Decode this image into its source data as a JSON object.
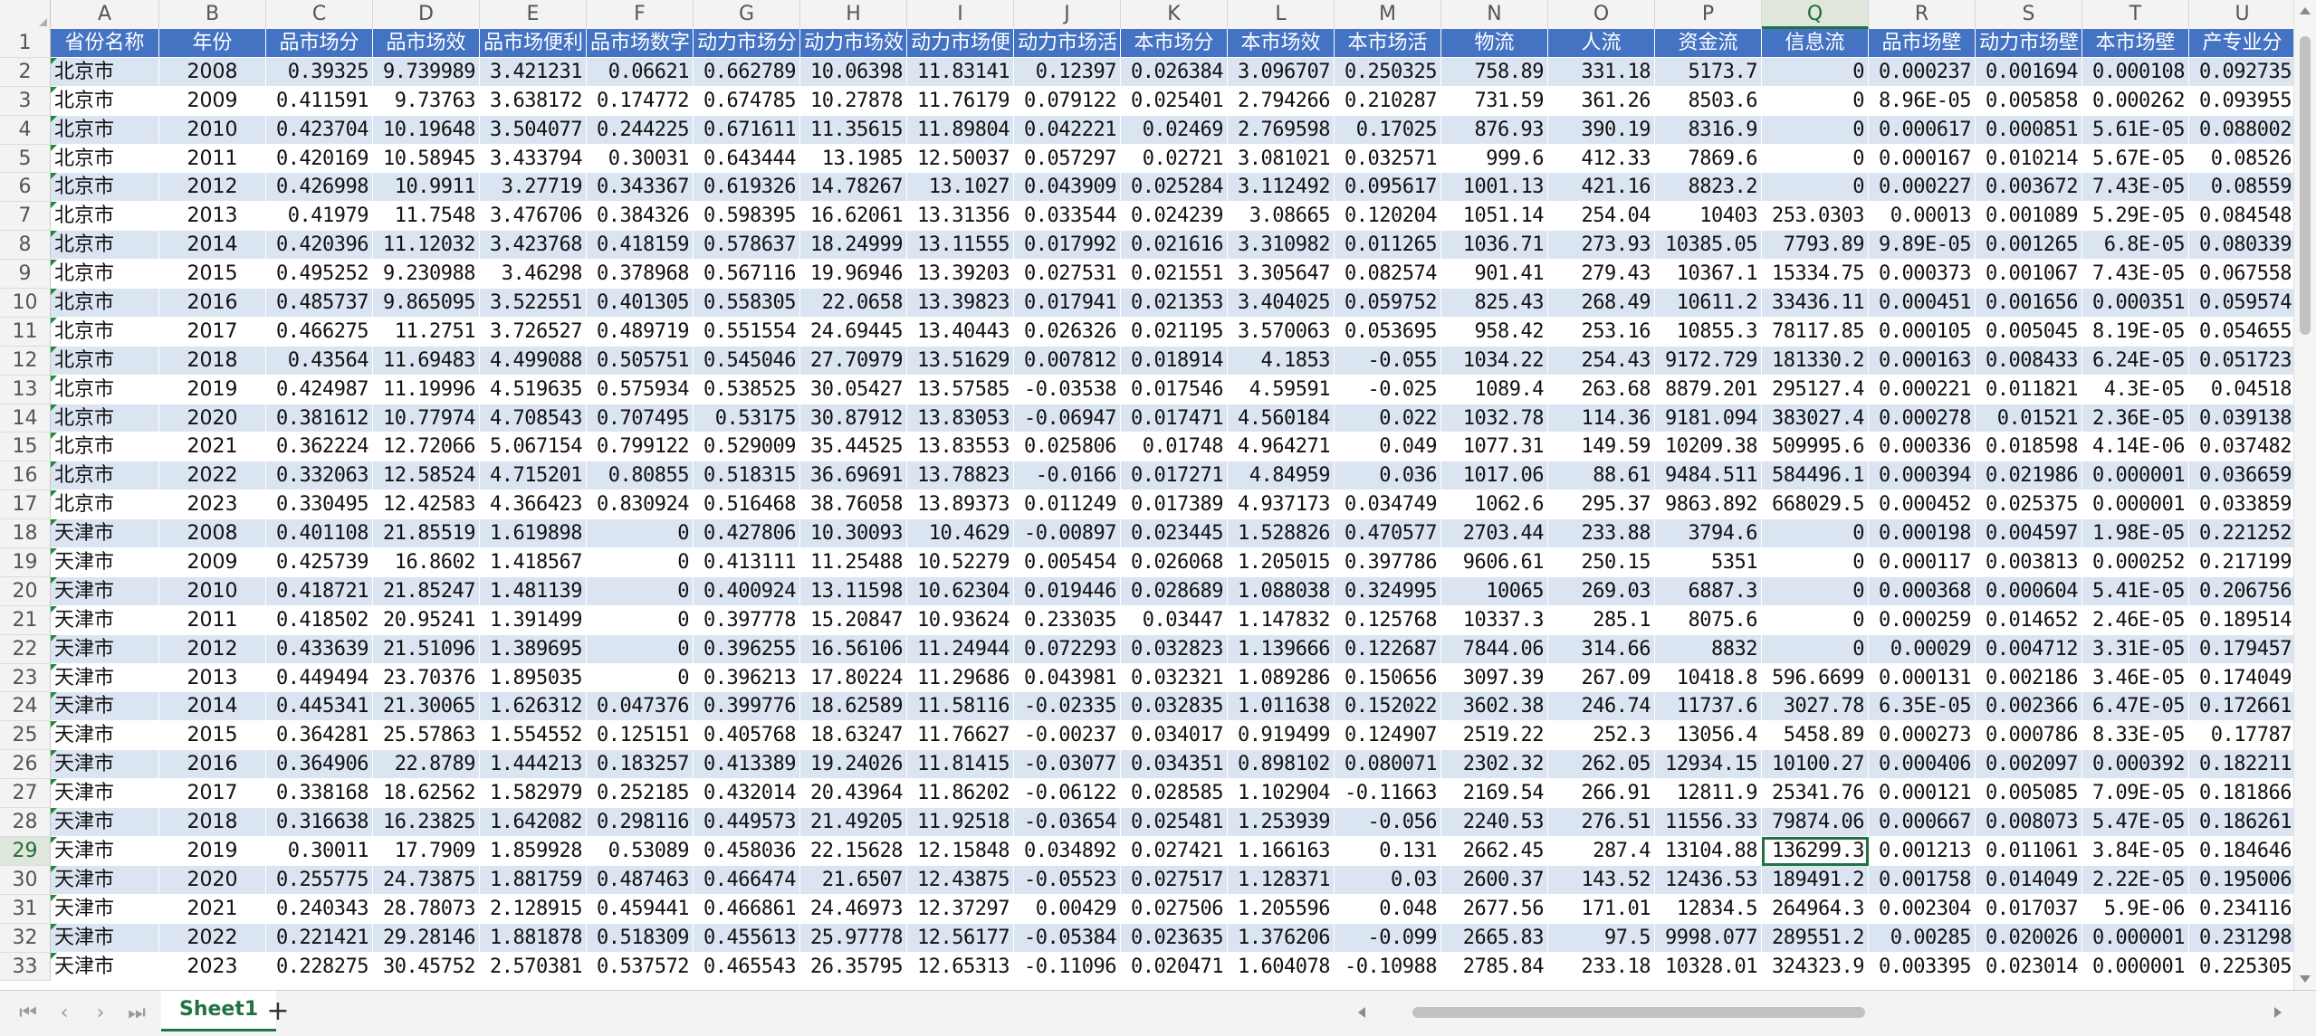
{
  "columns": [
    "A",
    "B",
    "C",
    "D",
    "E",
    "F",
    "G",
    "H",
    "I",
    "J",
    "K",
    "L",
    "M",
    "N",
    "O",
    "P",
    "Q",
    "R",
    "S",
    "T",
    "U"
  ],
  "selected_column": "Q",
  "selected_row": "29",
  "header_row": {
    "row_number": "1",
    "cells": [
      "省份名称",
      "年份",
      "品市场分",
      "品市场效",
      "品市场便利",
      "品市场数字",
      "动力市场分",
      "动力市场效",
      "动力市场便",
      "动力市场活",
      "本市场分",
      "本市场效",
      "本市场活",
      "物流",
      "人流",
      "资金流",
      "信息流",
      "品市场壁",
      "动力市场壁",
      "本市场壁",
      "产专业分"
    ]
  },
  "rows": [
    {
      "n": "2",
      "cells": [
        "北京市",
        "2008",
        "0.39325",
        "9.739989",
        "3.421231",
        "0.06621",
        "0.662789",
        "10.06398",
        "11.83141",
        "0.12397",
        "0.026384",
        "3.096707",
        "0.250325",
        "758.89",
        "331.18",
        "5173.7",
        "0",
        "0.000237",
        "0.001694",
        "0.000108",
        "0.092735"
      ]
    },
    {
      "n": "3",
      "cells": [
        "北京市",
        "2009",
        "0.411591",
        "9.73763",
        "3.638172",
        "0.174772",
        "0.674785",
        "10.27878",
        "11.76179",
        "0.079122",
        "0.025401",
        "2.794266",
        "0.210287",
        "731.59",
        "361.26",
        "8503.6",
        "0",
        "8.96E-05",
        "0.005858",
        "0.000262",
        "0.093955"
      ]
    },
    {
      "n": "4",
      "cells": [
        "北京市",
        "2010",
        "0.423704",
        "10.19648",
        "3.504077",
        "0.244225",
        "0.671611",
        "11.35615",
        "11.89804",
        "0.042221",
        "0.02469",
        "2.769598",
        "0.17025",
        "876.93",
        "390.19",
        "8316.9",
        "0",
        "0.000617",
        "0.000851",
        "5.61E-05",
        "0.088002"
      ]
    },
    {
      "n": "5",
      "cells": [
        "北京市",
        "2011",
        "0.420169",
        "10.58945",
        "3.433794",
        "0.30031",
        "0.643444",
        "13.1985",
        "12.50037",
        "0.057297",
        "0.02721",
        "3.081021",
        "0.032571",
        "999.6",
        "412.33",
        "7869.6",
        "0",
        "0.000167",
        "0.010214",
        "5.67E-05",
        "0.08526"
      ]
    },
    {
      "n": "6",
      "cells": [
        "北京市",
        "2012",
        "0.426998",
        "10.9911",
        "3.27719",
        "0.343367",
        "0.619326",
        "14.78267",
        "13.1027",
        "0.043909",
        "0.025284",
        "3.112492",
        "0.095617",
        "1001.13",
        "421.16",
        "8823.2",
        "0",
        "0.000227",
        "0.003672",
        "7.43E-05",
        "0.08559"
      ]
    },
    {
      "n": "7",
      "cells": [
        "北京市",
        "2013",
        "0.41979",
        "11.7548",
        "3.476706",
        "0.384326",
        "0.598395",
        "16.62061",
        "13.31356",
        "0.033544",
        "0.024239",
        "3.08665",
        "0.120204",
        "1051.14",
        "254.04",
        "10403",
        "253.0303",
        "0.00013",
        "0.001089",
        "5.29E-05",
        "0.084548"
      ]
    },
    {
      "n": "8",
      "cells": [
        "北京市",
        "2014",
        "0.420396",
        "11.12032",
        "3.423768",
        "0.418159",
        "0.578637",
        "18.24999",
        "13.11555",
        "0.017992",
        "0.021616",
        "3.310982",
        "0.011265",
        "1036.71",
        "273.93",
        "10385.05",
        "7793.89",
        "9.89E-05",
        "0.001265",
        "6.8E-05",
        "0.080339"
      ]
    },
    {
      "n": "9",
      "cells": [
        "北京市",
        "2015",
        "0.495252",
        "9.230988",
        "3.46298",
        "0.378968",
        "0.567116",
        "19.96946",
        "13.39203",
        "0.027531",
        "0.021551",
        "3.305647",
        "0.082574",
        "901.41",
        "279.43",
        "10367.1",
        "15334.75",
        "0.000373",
        "0.001067",
        "7.43E-05",
        "0.067558"
      ]
    },
    {
      "n": "10",
      "cells": [
        "北京市",
        "2016",
        "0.485737",
        "9.865095",
        "3.522551",
        "0.401305",
        "0.558305",
        "22.0658",
        "13.39823",
        "0.017941",
        "0.021353",
        "3.404025",
        "0.059752",
        "825.43",
        "268.49",
        "10611.2",
        "33436.11",
        "0.000451",
        "0.001656",
        "0.000351",
        "0.059574"
      ]
    },
    {
      "n": "11",
      "cells": [
        "北京市",
        "2017",
        "0.466275",
        "11.2751",
        "3.726527",
        "0.489719",
        "0.551554",
        "24.69445",
        "13.40443",
        "0.026326",
        "0.021195",
        "3.570063",
        "0.053695",
        "958.42",
        "253.16",
        "10855.3",
        "78117.85",
        "0.000105",
        "0.005045",
        "8.19E-05",
        "0.054655"
      ]
    },
    {
      "n": "12",
      "cells": [
        "北京市",
        "2018",
        "0.43564",
        "11.69483",
        "4.499088",
        "0.505751",
        "0.545046",
        "27.70979",
        "13.51629",
        "0.007812",
        "0.018914",
        "4.1853",
        "-0.055",
        "1034.22",
        "254.43",
        "9172.729",
        "181330.2",
        "0.000163",
        "0.008433",
        "6.24E-05",
        "0.051723"
      ]
    },
    {
      "n": "13",
      "cells": [
        "北京市",
        "2019",
        "0.424987",
        "11.19996",
        "4.519635",
        "0.575934",
        "0.538525",
        "30.05427",
        "13.57585",
        "-0.03538",
        "0.017546",
        "4.59591",
        "-0.025",
        "1089.4",
        "263.68",
        "8879.201",
        "295127.4",
        "0.000221",
        "0.011821",
        "4.3E-05",
        "0.04518"
      ]
    },
    {
      "n": "14",
      "cells": [
        "北京市",
        "2020",
        "0.381612",
        "10.77974",
        "4.708543",
        "0.707495",
        "0.53175",
        "30.87912",
        "13.83053",
        "-0.06947",
        "0.017471",
        "4.560184",
        "0.022",
        "1032.78",
        "114.36",
        "9181.094",
        "383027.4",
        "0.000278",
        "0.01521",
        "2.36E-05",
        "0.039138"
      ]
    },
    {
      "n": "15",
      "cells": [
        "北京市",
        "2021",
        "0.362224",
        "12.72066",
        "5.067154",
        "0.799122",
        "0.529009",
        "35.44525",
        "13.83553",
        "0.025806",
        "0.01748",
        "4.964271",
        "0.049",
        "1077.31",
        "149.59",
        "10209.38",
        "509995.6",
        "0.000336",
        "0.018598",
        "4.14E-06",
        "0.037482"
      ]
    },
    {
      "n": "16",
      "cells": [
        "北京市",
        "2022",
        "0.332063",
        "12.58524",
        "4.715201",
        "0.80855",
        "0.518315",
        "36.69691",
        "13.78823",
        "-0.0166",
        "0.017271",
        "4.84959",
        "0.036",
        "1017.06",
        "88.61",
        "9484.511",
        "584496.1",
        "0.000394",
        "0.021986",
        "0.000001",
        "0.036659"
      ]
    },
    {
      "n": "17",
      "cells": [
        "北京市",
        "2023",
        "0.330495",
        "12.42583",
        "4.366423",
        "0.830924",
        "0.516468",
        "38.76058",
        "13.89373",
        "0.011249",
        "0.017389",
        "4.937173",
        "0.034749",
        "1062.6",
        "295.37",
        "9863.892",
        "668029.5",
        "0.000452",
        "0.025375",
        "0.000001",
        "0.033859"
      ]
    },
    {
      "n": "18",
      "cells": [
        "天津市",
        "2008",
        "0.401108",
        "21.85519",
        "1.619898",
        "0",
        "0.427806",
        "10.30093",
        "10.4629",
        "-0.00897",
        "0.023445",
        "1.528826",
        "0.470577",
        "2703.44",
        "233.88",
        "3794.6",
        "0",
        "0.000198",
        "0.004597",
        "1.98E-05",
        "0.221252"
      ]
    },
    {
      "n": "19",
      "cells": [
        "天津市",
        "2009",
        "0.425739",
        "16.8602",
        "1.418567",
        "0",
        "0.413111",
        "11.25488",
        "10.52279",
        "0.005454",
        "0.026068",
        "1.205015",
        "0.397786",
        "9606.61",
        "250.15",
        "5351",
        "0",
        "0.000117",
        "0.003813",
        "0.000252",
        "0.217199"
      ]
    },
    {
      "n": "20",
      "cells": [
        "天津市",
        "2010",
        "0.418721",
        "21.85247",
        "1.481139",
        "0",
        "0.400924",
        "13.11598",
        "10.62304",
        "0.019446",
        "0.028689",
        "1.088038",
        "0.324995",
        "10065",
        "269.03",
        "6887.3",
        "0",
        "0.000368",
        "0.000604",
        "5.41E-05",
        "0.206756"
      ]
    },
    {
      "n": "21",
      "cells": [
        "天津市",
        "2011",
        "0.418502",
        "20.95241",
        "1.391499",
        "0",
        "0.397778",
        "15.20847",
        "10.93624",
        "0.233035",
        "0.03447",
        "1.147832",
        "0.125768",
        "10337.3",
        "285.1",
        "8075.6",
        "0",
        "0.000259",
        "0.014652",
        "2.46E-05",
        "0.189514"
      ]
    },
    {
      "n": "22",
      "cells": [
        "天津市",
        "2012",
        "0.433639",
        "21.51096",
        "1.389695",
        "0",
        "0.396255",
        "16.56106",
        "11.24944",
        "0.072293",
        "0.032823",
        "1.139666",
        "0.122687",
        "7844.06",
        "314.66",
        "8832",
        "0",
        "0.00029",
        "0.004712",
        "3.31E-05",
        "0.179457"
      ]
    },
    {
      "n": "23",
      "cells": [
        "天津市",
        "2013",
        "0.449494",
        "23.70376",
        "1.895035",
        "0",
        "0.396213",
        "17.80224",
        "11.29686",
        "0.043981",
        "0.032321",
        "1.089286",
        "0.150656",
        "3097.39",
        "267.09",
        "10418.8",
        "596.6699",
        "0.000131",
        "0.002186",
        "3.46E-05",
        "0.174049"
      ]
    },
    {
      "n": "24",
      "cells": [
        "天津市",
        "2014",
        "0.445341",
        "21.30065",
        "1.626312",
        "0.047376",
        "0.399776",
        "18.62589",
        "11.58116",
        "-0.02335",
        "0.032835",
        "1.011638",
        "0.152022",
        "3602.38",
        "246.74",
        "11737.6",
        "3027.78",
        "6.35E-05",
        "0.002366",
        "6.47E-05",
        "0.172661"
      ]
    },
    {
      "n": "25",
      "cells": [
        "天津市",
        "2015",
        "0.364281",
        "25.57863",
        "1.554552",
        "0.125151",
        "0.405768",
        "18.63247",
        "11.76627",
        "-0.00237",
        "0.034017",
        "0.919499",
        "0.124907",
        "2519.22",
        "252.3",
        "13056.4",
        "5458.89",
        "0.000273",
        "0.000786",
        "8.33E-05",
        "0.17787"
      ]
    },
    {
      "n": "26",
      "cells": [
        "天津市",
        "2016",
        "0.364906",
        "22.8789",
        "1.444213",
        "0.183257",
        "0.413389",
        "19.24026",
        "11.81415",
        "-0.03077",
        "0.034351",
        "0.898102",
        "0.080071",
        "2302.32",
        "262.05",
        "12934.15",
        "10100.27",
        "0.000406",
        "0.002097",
        "0.000392",
        "0.182211"
      ]
    },
    {
      "n": "27",
      "cells": [
        "天津市",
        "2017",
        "0.338168",
        "18.62562",
        "1.582979",
        "0.252185",
        "0.432014",
        "20.43964",
        "11.86202",
        "-0.06122",
        "0.028585",
        "1.102904",
        "-0.11663",
        "2169.54",
        "266.91",
        "12811.9",
        "25341.76",
        "0.000121",
        "0.005085",
        "7.09E-05",
        "0.181866"
      ]
    },
    {
      "n": "28",
      "cells": [
        "天津市",
        "2018",
        "0.316638",
        "16.23825",
        "1.642082",
        "0.298116",
        "0.449573",
        "21.49205",
        "11.92518",
        "-0.03654",
        "0.025481",
        "1.253939",
        "-0.056",
        "2240.53",
        "276.51",
        "11556.33",
        "79874.06",
        "0.000667",
        "0.008073",
        "5.47E-05",
        "0.186261"
      ]
    },
    {
      "n": "29",
      "cells": [
        "天津市",
        "2019",
        "0.30011",
        "17.7909",
        "1.859928",
        "0.53089",
        "0.458036",
        "22.15628",
        "12.15848",
        "0.034892",
        "0.027421",
        "1.166163",
        "0.131",
        "2662.45",
        "287.4",
        "13104.88",
        "136299.3",
        "0.001213",
        "0.011061",
        "3.84E-05",
        "0.184646"
      ]
    },
    {
      "n": "30",
      "cells": [
        "天津市",
        "2020",
        "0.255775",
        "24.73875",
        "1.881759",
        "0.487463",
        "0.466474",
        "21.6507",
        "12.43875",
        "-0.05523",
        "0.027517",
        "1.128371",
        "0.03",
        "2600.37",
        "143.52",
        "12436.53",
        "189491.2",
        "0.001758",
        "0.014049",
        "2.22E-05",
        "0.195006"
      ]
    },
    {
      "n": "31",
      "cells": [
        "天津市",
        "2021",
        "0.240343",
        "28.78073",
        "2.128915",
        "0.459441",
        "0.466861",
        "24.46973",
        "12.37297",
        "0.00429",
        "0.027506",
        "1.205596",
        "0.048",
        "2677.56",
        "171.01",
        "12834.5",
        "264964.3",
        "0.002304",
        "0.017037",
        "5.9E-06",
        "0.234116"
      ]
    },
    {
      "n": "32",
      "cells": [
        "天津市",
        "2022",
        "0.221421",
        "29.28146",
        "1.881878",
        "0.518309",
        "0.455613",
        "25.97778",
        "12.56177",
        "-0.05384",
        "0.023635",
        "1.376206",
        "-0.099",
        "2665.83",
        "97.5",
        "9998.077",
        "289551.2",
        "0.00285",
        "0.020026",
        "0.000001",
        "0.231298"
      ]
    },
    {
      "n": "33",
      "cells": [
        "天津市",
        "2023",
        "0.228275",
        "30.45752",
        "2.570381",
        "0.537572",
        "0.465543",
        "26.35795",
        "12.65313",
        "-0.11096",
        "0.020471",
        "1.604078",
        "-0.10988",
        "2785.84",
        "233.18",
        "10328.01",
        "324323.9",
        "0.003395",
        "0.023014",
        "0.000001",
        "0.225305"
      ]
    }
  ],
  "sheet_tab": "Sheet1",
  "icons": {
    "first": "⏮",
    "prev": "‹",
    "next": "›",
    "last": "⏭",
    "add": "+"
  }
}
